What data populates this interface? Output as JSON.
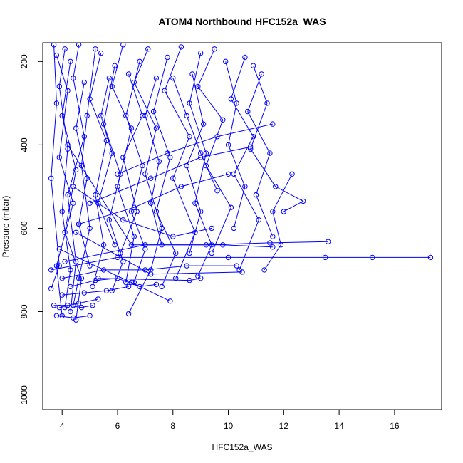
{
  "chart_data": {
    "type": "line",
    "title": "ATOM4 Northbound HFC152a_WAS",
    "xlabel": "HFC152a_WAS",
    "ylabel": "Pressure (mbar)",
    "xlim": [
      3.3,
      17.7
    ],
    "ylim": [
      1035,
      155
    ],
    "y_reversed": true,
    "x_ticks": [
      4,
      6,
      8,
      10,
      12,
      14,
      16
    ],
    "y_ticks": [
      200,
      400,
      600,
      800,
      1000
    ],
    "grid": false,
    "legend": "none",
    "marker": "open-circle",
    "line_color": "#0000ff",
    "series": [
      {
        "points": [
          [
            3.7,
            160
          ],
          [
            3.8,
            300
          ],
          [
            3.6,
            480
          ],
          [
            3.9,
            690
          ],
          [
            3.6,
            745
          ]
        ]
      },
      {
        "points": [
          [
            4.1,
            170
          ],
          [
            3.9,
            260
          ],
          [
            4.2,
            410
          ],
          [
            4.0,
            560
          ],
          [
            4.3,
            700
          ],
          [
            4.1,
            790
          ]
        ]
      },
      {
        "points": [
          [
            4.6,
            160
          ],
          [
            4.4,
            240
          ],
          [
            4.8,
            380
          ],
          [
            4.2,
            520
          ],
          [
            4.5,
            680
          ],
          [
            4.3,
            800
          ]
        ]
      },
      {
        "points": [
          [
            5.2,
            170
          ],
          [
            4.9,
            330
          ],
          [
            4.7,
            450
          ],
          [
            5.0,
            600
          ],
          [
            4.6,
            720
          ],
          [
            4.4,
            785
          ]
        ]
      },
      {
        "points": [
          [
            3.8,
            185
          ],
          [
            4.2,
            270
          ],
          [
            3.9,
            430
          ],
          [
            4.4,
            540
          ],
          [
            3.8,
            690
          ],
          [
            4.0,
            810
          ]
        ]
      },
      {
        "points": [
          [
            4.3,
            200
          ],
          [
            4.0,
            330
          ],
          [
            4.5,
            460
          ],
          [
            4.1,
            610
          ],
          [
            4.7,
            720
          ],
          [
            4.5,
            820
          ]
        ]
      },
      {
        "points": [
          [
            5.4,
            180
          ],
          [
            5.0,
            290
          ],
          [
            5.6,
            390
          ],
          [
            5.2,
            520
          ],
          [
            5.5,
            640
          ],
          [
            5.1,
            740
          ]
        ]
      },
      {
        "points": [
          [
            6.2,
            160
          ],
          [
            5.8,
            260
          ],
          [
            6.5,
            360
          ],
          [
            6.0,
            500
          ],
          [
            6.6,
            620
          ],
          [
            6.3,
            730
          ]
        ]
      },
      {
        "points": [
          [
            7.1,
            170
          ],
          [
            6.6,
            250
          ],
          [
            7.4,
            360
          ],
          [
            7.0,
            470
          ],
          [
            7.6,
            600
          ],
          [
            7.2,
            700
          ],
          [
            6.4,
            805
          ]
        ]
      },
      {
        "points": [
          [
            8.3,
            165
          ],
          [
            7.7,
            270
          ],
          [
            8.6,
            380
          ],
          [
            8.0,
            480
          ],
          [
            8.8,
            610
          ],
          [
            8.1,
            720
          ]
        ]
      },
      {
        "points": [
          [
            9.5,
            170
          ],
          [
            8.9,
            260
          ],
          [
            9.8,
            340
          ],
          [
            9.2,
            450
          ],
          [
            10.1,
            550
          ],
          [
            9.4,
            660
          ]
        ]
      },
      {
        "points": [
          [
            10.6,
            190
          ],
          [
            10.1,
            290
          ],
          [
            10.9,
            380
          ],
          [
            10.2,
            470
          ],
          [
            11.1,
            580
          ],
          [
            10.4,
            700
          ]
        ]
      },
      {
        "points": [
          [
            11.2,
            230
          ],
          [
            10.7,
            320
          ],
          [
            11.5,
            420
          ],
          [
            11.0,
            520
          ],
          [
            11.6,
            620
          ]
        ]
      },
      {
        "points": [
          [
            9.0,
            180
          ],
          [
            8.6,
            300
          ],
          [
            9.2,
            420
          ],
          [
            8.8,
            540
          ],
          [
            9.4,
            640
          ],
          [
            8.9,
            715
          ]
        ]
      },
      {
        "points": [
          [
            7.8,
            190
          ],
          [
            7.3,
            320
          ],
          [
            7.9,
            430
          ],
          [
            7.4,
            560
          ],
          [
            8.1,
            660
          ],
          [
            7.6,
            740
          ]
        ]
      },
      {
        "points": [
          [
            6.8,
            200
          ],
          [
            6.3,
            330
          ],
          [
            6.9,
            450
          ],
          [
            6.5,
            560
          ],
          [
            7.0,
            650
          ],
          [
            6.6,
            730
          ]
        ]
      },
      {
        "points": [
          [
            5.9,
            210
          ],
          [
            5.5,
            350
          ],
          [
            6.1,
            470
          ],
          [
            5.7,
            580
          ],
          [
            6.2,
            680
          ],
          [
            5.8,
            750
          ]
        ]
      },
      {
        "points": [
          [
            10.9,
            210
          ],
          [
            11.4,
            300
          ],
          [
            10.8,
            410
          ],
          [
            11.7,
            500
          ],
          [
            12.7,
            535
          ],
          [
            12.0,
            560
          ]
        ]
      },
      {
        "points": [
          [
            12.3,
            470
          ],
          [
            11.6,
            560
          ],
          [
            11.9,
            640
          ],
          [
            11.3,
            700
          ]
        ]
      },
      {
        "points": [
          [
            4.2,
            400
          ],
          [
            6.5,
            640
          ],
          [
            9.8,
            640
          ],
          [
            11.6,
            645
          ]
        ]
      },
      {
        "points": [
          [
            4.5,
            610
          ],
          [
            7.2,
            710
          ],
          [
            10.5,
            705
          ]
        ]
      },
      {
        "points": [
          [
            5.3,
            720
          ],
          [
            8.6,
            725
          ],
          [
            9.0,
            720
          ]
        ]
      },
      {
        "points": [
          [
            3.9,
            650
          ],
          [
            6.5,
            730
          ],
          [
            7.9,
            775
          ]
        ]
      },
      {
        "points": [
          [
            4.6,
            590
          ],
          [
            6.6,
            550
          ],
          [
            8.3,
            500
          ],
          [
            10.0,
            470
          ]
        ]
      },
      {
        "points": [
          [
            5.0,
            540
          ],
          [
            7.2,
            480
          ],
          [
            9.0,
            430
          ],
          [
            10.8,
            405
          ]
        ]
      },
      {
        "points": [
          [
            6.0,
            470
          ],
          [
            7.8,
            420
          ],
          [
            9.6,
            380
          ],
          [
            11.6,
            350
          ]
        ]
      },
      {
        "points": [
          [
            4.4,
            500
          ],
          [
            6.2,
            580
          ],
          [
            8.0,
            620
          ],
          [
            9.4,
            600
          ]
        ]
      },
      {
        "points": [
          [
            3.6,
            700
          ],
          [
            6.0,
            670
          ],
          [
            10.0,
            670
          ],
          [
            13.5,
            670
          ],
          [
            15.2,
            670
          ],
          [
            17.3,
            670
          ]
        ]
      },
      {
        "points": [
          [
            4.1,
            680
          ],
          [
            7.0,
            640
          ],
          [
            9.2,
            640
          ],
          [
            11.5,
            635
          ],
          [
            13.6,
            632
          ]
        ]
      },
      {
        "points": [
          [
            4.0,
            720
          ],
          [
            5.5,
            700
          ],
          [
            7.0,
            700
          ],
          [
            8.5,
            690
          ],
          [
            10.3,
            690
          ]
        ]
      },
      {
        "points": [
          [
            3.7,
            785
          ],
          [
            4.2,
            785
          ],
          [
            4.7,
            790
          ],
          [
            5.1,
            785
          ]
        ]
      },
      {
        "points": [
          [
            3.8,
            810
          ],
          [
            4.4,
            815
          ],
          [
            5.0,
            810
          ]
        ]
      },
      {
        "points": [
          [
            4.0,
            760
          ],
          [
            4.8,
            755
          ],
          [
            5.6,
            750
          ],
          [
            6.4,
            740
          ]
        ]
      },
      {
        "points": [
          [
            4.3,
            740
          ],
          [
            5.2,
            725
          ],
          [
            6.0,
            720
          ],
          [
            6.8,
            740
          ],
          [
            7.4,
            735
          ]
        ]
      },
      {
        "points": [
          [
            3.9,
            790
          ],
          [
            4.6,
            780
          ],
          [
            5.3,
            770
          ]
        ]
      },
      {
        "points": [
          [
            8.0,
            240
          ],
          [
            8.5,
            330
          ],
          [
            9.0,
            420
          ],
          [
            9.6,
            510
          ]
        ]
      },
      {
        "points": [
          [
            9.9,
            200
          ],
          [
            10.3,
            300
          ],
          [
            10.0,
            400
          ],
          [
            10.6,
            500
          ],
          [
            10.2,
            600
          ]
        ]
      },
      {
        "points": [
          [
            7.4,
            240
          ],
          [
            7.0,
            330
          ],
          [
            7.5,
            440
          ],
          [
            7.2,
            540
          ],
          [
            7.6,
            640
          ]
        ]
      },
      {
        "points": [
          [
            8.7,
            230
          ],
          [
            9.1,
            350
          ],
          [
            8.5,
            450
          ],
          [
            9.0,
            560
          ],
          [
            8.6,
            660
          ]
        ]
      },
      {
        "points": [
          [
            5.7,
            240
          ],
          [
            5.4,
            330
          ],
          [
            5.8,
            420
          ],
          [
            5.3,
            540
          ],
          [
            5.9,
            640
          ]
        ]
      },
      {
        "points": [
          [
            4.8,
            250
          ],
          [
            4.5,
            360
          ],
          [
            4.9,
            480
          ],
          [
            4.6,
            590
          ],
          [
            5.0,
            690
          ]
        ]
      },
      {
        "points": [
          [
            6.4,
            230
          ],
          [
            6.9,
            330
          ],
          [
            6.2,
            430
          ],
          [
            6.7,
            560
          ],
          [
            6.1,
            660
          ]
        ]
      }
    ]
  }
}
